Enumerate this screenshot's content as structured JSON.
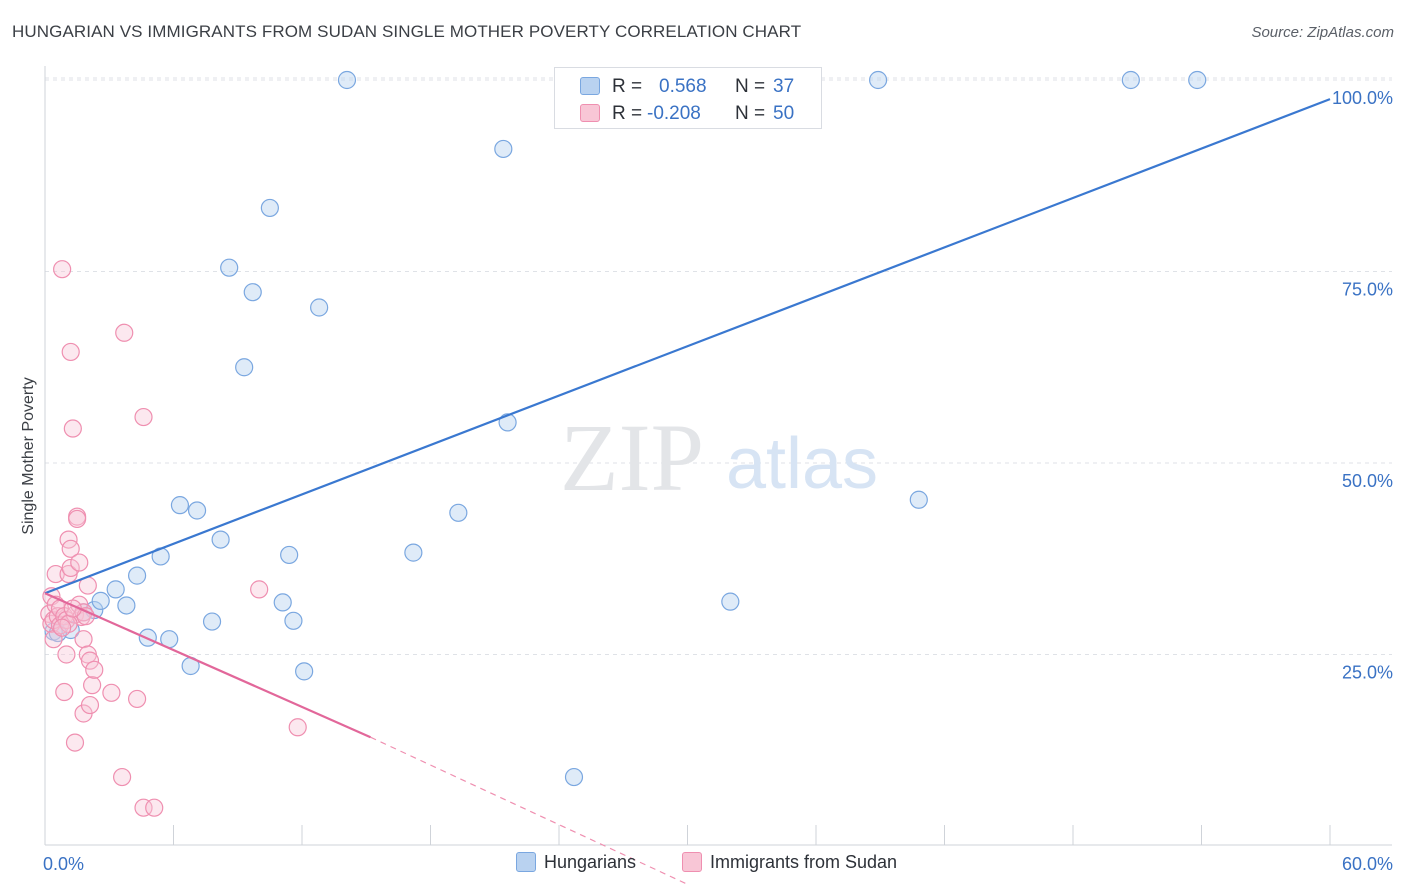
{
  "header": {
    "title": "HUNGARIAN VS IMMIGRANTS FROM SUDAN SINGLE MOTHER POVERTY CORRELATION CHART",
    "source": "Source: ZipAtlas.com"
  },
  "watermark": {
    "zip": "ZIP",
    "atlas": "atlas"
  },
  "stats": [
    {
      "r_label": "R =",
      "r_value": "0.568",
      "n_label": "N =",
      "n_value": "37",
      "color": "#7aa7e0"
    },
    {
      "r_label": "R =",
      "r_value": "-0.208",
      "n_label": "N =",
      "n_value": "50",
      "color": "#ef8fb0"
    }
  ],
  "legend": {
    "items": [
      "Hungarians",
      "Immigrants from Sudan"
    ]
  },
  "chart_data": {
    "type": "scatter",
    "title": "HUNGARIAN VS IMMIGRANTS FROM SUDAN SINGLE MOTHER POVERTY CORRELATION CHART",
    "xlabel": "",
    "ylabel": "Single Mother Poverty",
    "xlim": [
      0,
      60
    ],
    "ylim": [
      0,
      102
    ],
    "x_tick_labels": [
      {
        "value": 0,
        "label": "0.0%"
      },
      {
        "value": 60,
        "label": "60.0%"
      }
    ],
    "y_tick_labels": [
      {
        "value": 25,
        "label": "25.0%"
      },
      {
        "value": 50,
        "label": "50.0%"
      },
      {
        "value": 75,
        "label": "75.0%"
      },
      {
        "value": 100,
        "label": "100.0%"
      }
    ],
    "x_minor_ticks": [
      0,
      6,
      12,
      18,
      24,
      30,
      36,
      42,
      48,
      54,
      60
    ],
    "grid": true,
    "series": [
      {
        "name": "Hungarians",
        "color": "#7aa7e0",
        "points": [
          [
            0.4,
            28.0
          ],
          [
            1.2,
            28.2
          ],
          [
            1.8,
            30.5
          ],
          [
            2.3,
            30.8
          ],
          [
            2.6,
            32.0
          ],
          [
            3.3,
            33.5
          ],
          [
            3.8,
            31.4
          ],
          [
            4.3,
            35.3
          ],
          [
            4.8,
            27.2
          ],
          [
            5.4,
            37.8
          ],
          [
            5.8,
            27.0
          ],
          [
            6.3,
            44.5
          ],
          [
            6.8,
            23.5
          ],
          [
            7.1,
            43.8
          ],
          [
            7.8,
            29.3
          ],
          [
            8.2,
            40.0
          ],
          [
            8.6,
            75.5
          ],
          [
            9.3,
            62.5
          ],
          [
            9.7,
            72.3
          ],
          [
            10.5,
            83.3
          ],
          [
            11.1,
            31.8
          ],
          [
            11.4,
            38.0
          ],
          [
            11.6,
            29.4
          ],
          [
            12.1,
            22.8
          ],
          [
            12.8,
            70.3
          ],
          [
            14.1,
            100.0
          ],
          [
            17.2,
            38.3
          ],
          [
            19.3,
            43.5
          ],
          [
            21.4,
            91.0
          ],
          [
            21.6,
            55.3
          ],
          [
            24.7,
            9.0
          ],
          [
            32.0,
            31.9
          ],
          [
            38.9,
            100.0
          ],
          [
            40.8,
            45.2
          ],
          [
            50.7,
            100.0
          ],
          [
            53.8,
            100.0
          ],
          [
            0.6,
            27.8
          ]
        ],
        "trend": {
          "x0": 0,
          "y0": 33.0,
          "x1": 60,
          "y1": 97.5
        }
      },
      {
        "name": "Immigrants from Sudan",
        "color": "#ef8fb0",
        "points": [
          [
            0.2,
            30.3
          ],
          [
            0.3,
            29.0
          ],
          [
            0.3,
            32.6
          ],
          [
            0.4,
            27.0
          ],
          [
            0.4,
            29.5
          ],
          [
            0.5,
            31.5
          ],
          [
            0.5,
            35.5
          ],
          [
            0.6,
            30.0
          ],
          [
            0.7,
            28.8
          ],
          [
            0.7,
            31.0
          ],
          [
            0.8,
            75.3
          ],
          [
            0.9,
            30.0
          ],
          [
            0.9,
            20.1
          ],
          [
            1.0,
            25.0
          ],
          [
            1.0,
            29.5
          ],
          [
            1.1,
            40.0
          ],
          [
            1.1,
            35.5
          ],
          [
            1.2,
            38.8
          ],
          [
            1.2,
            36.3
          ],
          [
            1.2,
            64.5
          ],
          [
            1.3,
            54.5
          ],
          [
            1.4,
            13.5
          ],
          [
            1.4,
            30.2
          ],
          [
            1.5,
            43.0
          ],
          [
            1.5,
            42.7
          ],
          [
            1.6,
            31.5
          ],
          [
            1.6,
            37.0
          ],
          [
            1.7,
            29.9
          ],
          [
            1.8,
            30.5
          ],
          [
            1.8,
            27.0
          ],
          [
            1.8,
            17.3
          ],
          [
            1.9,
            30.0
          ],
          [
            2.0,
            25.0
          ],
          [
            2.0,
            34.0
          ],
          [
            2.1,
            24.2
          ],
          [
            2.1,
            18.4
          ],
          [
            2.2,
            21.0
          ],
          [
            2.3,
            23.0
          ],
          [
            3.1,
            20.0
          ],
          [
            3.6,
            9.0
          ],
          [
            3.7,
            67.0
          ],
          [
            4.3,
            19.2
          ],
          [
            4.6,
            56.0
          ],
          [
            4.6,
            5.0
          ],
          [
            5.1,
            5.0
          ],
          [
            10.0,
            33.5
          ],
          [
            11.8,
            15.5
          ],
          [
            1.1,
            29.0
          ],
          [
            0.8,
            28.5
          ],
          [
            1.3,
            31.0
          ]
        ],
        "trend": {
          "x0": 0,
          "y0": 33.0,
          "x1": 15.2,
          "y1": 14.2
        },
        "trend_dashed": {
          "x0": 15.2,
          "y0": 14.2,
          "x1": 30.0,
          "y1": -5.0
        }
      }
    ]
  }
}
